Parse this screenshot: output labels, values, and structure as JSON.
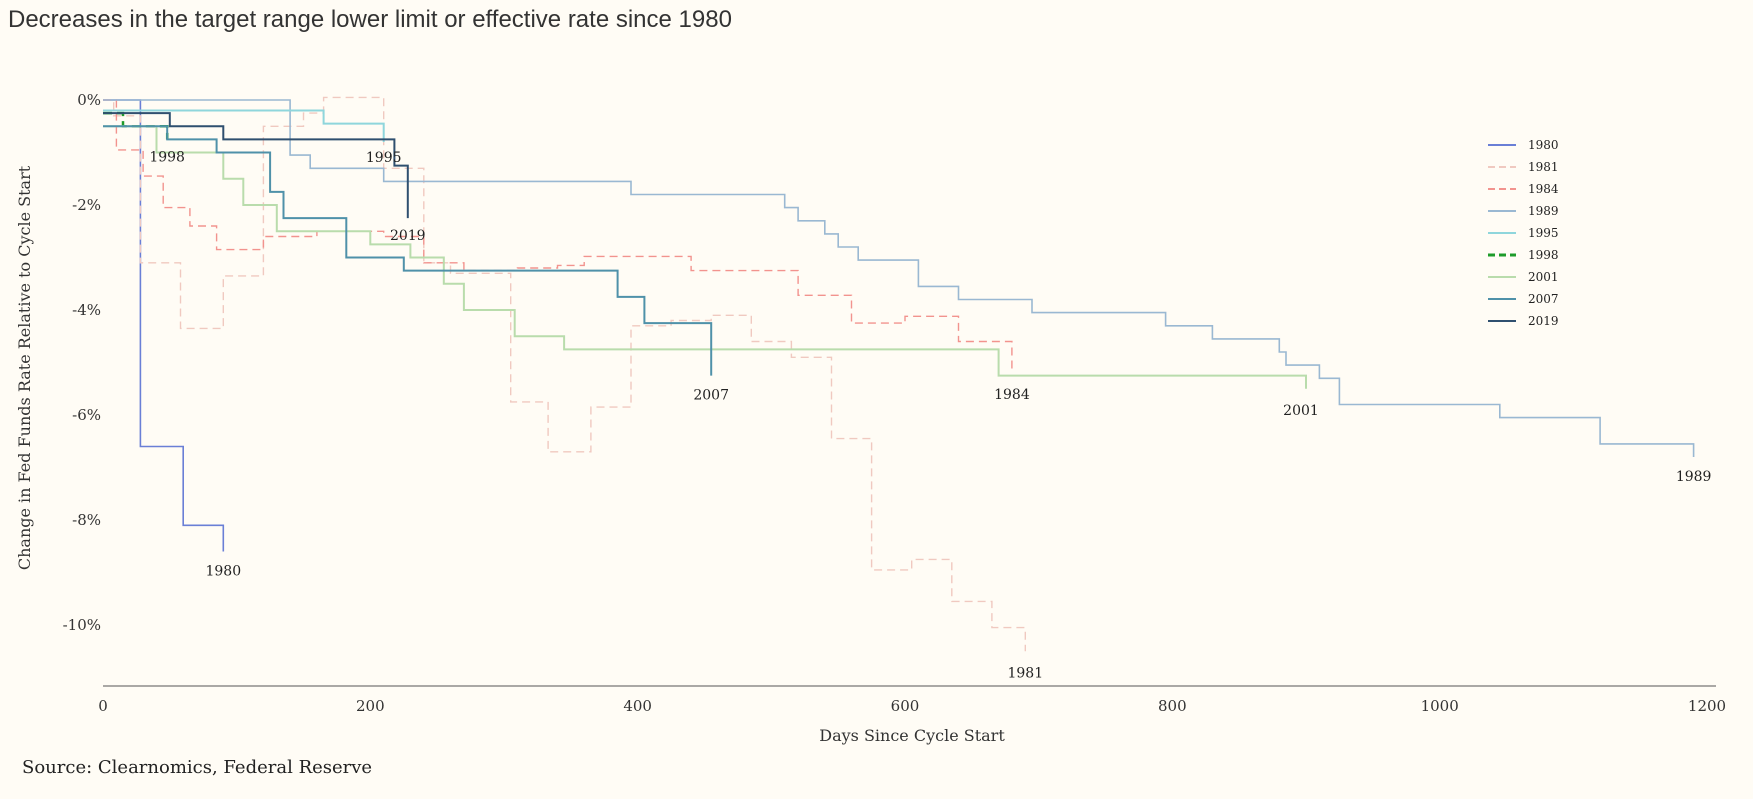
{
  "subtitle": "Decreases in the target range lower limit or effective rate since 1980",
  "source": "Source: Clearnomics, Federal Reserve",
  "chart_data": {
    "type": "line",
    "step": true,
    "xlabel": "Days Since Cycle Start",
    "ylabel": "Change in Fed Funds Rate Relative to Cycle Start",
    "xlim": [
      0,
      1200
    ],
    "ylim": [
      -11,
      0.2
    ],
    "xticks": [
      0,
      200,
      400,
      600,
      800,
      1000,
      1200
    ],
    "xtick_labels": [
      "0",
      "200",
      "400",
      "600",
      "800",
      "1000",
      "1200"
    ],
    "yticks": [
      0,
      -2,
      -4,
      -6,
      -8,
      -10
    ],
    "ytick_labels": [
      "0%",
      "-2%",
      "-4%",
      "-6%",
      "-8%",
      "-10%"
    ],
    "grid": false,
    "legend_position": "right",
    "series": [
      {
        "name": "1980",
        "color": "#6a7fd6",
        "dash": "solid",
        "width": 1.6,
        "end_label": "1980",
        "points": [
          [
            0,
            0
          ],
          [
            28,
            0
          ],
          [
            28,
            -6.6
          ],
          [
            60,
            -6.6
          ],
          [
            60,
            -8.1
          ],
          [
            90,
            -8.1
          ],
          [
            90,
            -8.6
          ]
        ]
      },
      {
        "name": "1981",
        "color": "#f0c9c0",
        "dash": "dashed",
        "width": 1.4,
        "end_label": "1981",
        "points": [
          [
            0,
            0
          ],
          [
            8,
            0
          ],
          [
            8,
            -0.3
          ],
          [
            28,
            -0.3
          ],
          [
            28,
            -3.1
          ],
          [
            58,
            -3.1
          ],
          [
            58,
            -4.35
          ],
          [
            90,
            -4.35
          ],
          [
            90,
            -3.35
          ],
          [
            120,
            -3.35
          ],
          [
            120,
            -0.5
          ],
          [
            150,
            -0.5
          ],
          [
            150,
            -0.25
          ],
          [
            165,
            -0.25
          ],
          [
            165,
            0.05
          ],
          [
            210,
            0.05
          ],
          [
            210,
            -1.3
          ],
          [
            240,
            -1.3
          ],
          [
            240,
            -3.1
          ],
          [
            260,
            -3.1
          ],
          [
            260,
            -3.3
          ],
          [
            305,
            -3.3
          ],
          [
            305,
            -5.75
          ],
          [
            333,
            -5.75
          ],
          [
            333,
            -6.7
          ],
          [
            365,
            -6.7
          ],
          [
            365,
            -5.85
          ],
          [
            395,
            -5.85
          ],
          [
            395,
            -4.3
          ],
          [
            425,
            -4.3
          ],
          [
            425,
            -4.2
          ],
          [
            455,
            -4.2
          ],
          [
            455,
            -4.1
          ],
          [
            485,
            -4.1
          ],
          [
            485,
            -4.6
          ],
          [
            515,
            -4.6
          ],
          [
            515,
            -4.9
          ],
          [
            545,
            -4.9
          ],
          [
            545,
            -6.45
          ],
          [
            575,
            -6.45
          ],
          [
            575,
            -8.95
          ],
          [
            605,
            -8.95
          ],
          [
            605,
            -8.75
          ],
          [
            635,
            -8.75
          ],
          [
            635,
            -9.55
          ],
          [
            665,
            -9.55
          ],
          [
            665,
            -10.05
          ],
          [
            690,
            -10.05
          ],
          [
            690,
            -10.5
          ]
        ]
      },
      {
        "name": "1984",
        "color": "#f2938e",
        "dash": "dashed",
        "width": 1.4,
        "end_label": "1984",
        "points": [
          [
            0,
            0
          ],
          [
            10,
            0
          ],
          [
            10,
            -0.95
          ],
          [
            30,
            -0.95
          ],
          [
            30,
            -1.45
          ],
          [
            45,
            -1.45
          ],
          [
            45,
            -2.05
          ],
          [
            65,
            -2.05
          ],
          [
            65,
            -2.4
          ],
          [
            85,
            -2.4
          ],
          [
            85,
            -2.85
          ],
          [
            120,
            -2.85
          ],
          [
            120,
            -2.6
          ],
          [
            160,
            -2.6
          ],
          [
            160,
            -2.5
          ],
          [
            210,
            -2.5
          ],
          [
            210,
            -2.6
          ],
          [
            240,
            -2.6
          ],
          [
            240,
            -3.1
          ],
          [
            270,
            -3.1
          ],
          [
            270,
            -3.25
          ],
          [
            310,
            -3.25
          ],
          [
            310,
            -3.2
          ],
          [
            340,
            -3.2
          ],
          [
            340,
            -3.15
          ],
          [
            360,
            -3.15
          ],
          [
            360,
            -2.98
          ],
          [
            440,
            -2.98
          ],
          [
            440,
            -3.25
          ],
          [
            520,
            -3.25
          ],
          [
            520,
            -3.72
          ],
          [
            560,
            -3.72
          ],
          [
            560,
            -4.25
          ],
          [
            600,
            -4.25
          ],
          [
            600,
            -4.12
          ],
          [
            640,
            -4.12
          ],
          [
            640,
            -4.6
          ],
          [
            680,
            -4.6
          ],
          [
            680,
            -5.2
          ]
        ]
      },
      {
        "name": "1989",
        "color": "#9ab8d2",
        "dash": "solid",
        "width": 1.6,
        "end_label": "1989",
        "points": [
          [
            0,
            0
          ],
          [
            140,
            0
          ],
          [
            140,
            -1.05
          ],
          [
            155,
            -1.05
          ],
          [
            155,
            -1.3
          ],
          [
            210,
            -1.3
          ],
          [
            210,
            -1.55
          ],
          [
            395,
            -1.55
          ],
          [
            395,
            -1.8
          ],
          [
            510,
            -1.8
          ],
          [
            510,
            -2.05
          ],
          [
            520,
            -2.05
          ],
          [
            520,
            -2.3
          ],
          [
            540,
            -2.3
          ],
          [
            540,
            -2.55
          ],
          [
            550,
            -2.55
          ],
          [
            550,
            -2.8
          ],
          [
            565,
            -2.8
          ],
          [
            565,
            -3.05
          ],
          [
            610,
            -3.05
          ],
          [
            610,
            -3.55
          ],
          [
            640,
            -3.55
          ],
          [
            640,
            -3.8
          ],
          [
            695,
            -3.8
          ],
          [
            695,
            -4.05
          ],
          [
            795,
            -4.05
          ],
          [
            795,
            -4.3
          ],
          [
            830,
            -4.3
          ],
          [
            830,
            -4.55
          ],
          [
            880,
            -4.55
          ],
          [
            880,
            -4.8
          ],
          [
            885,
            -4.8
          ],
          [
            885,
            -5.05
          ],
          [
            910,
            -5.05
          ],
          [
            910,
            -5.3
          ],
          [
            925,
            -5.3
          ],
          [
            925,
            -5.8
          ],
          [
            1045,
            -5.8
          ],
          [
            1045,
            -6.05
          ],
          [
            1120,
            -6.05
          ],
          [
            1120,
            -6.55
          ],
          [
            1190,
            -6.55
          ],
          [
            1190,
            -6.8
          ]
        ]
      },
      {
        "name": "1995",
        "color": "#8fd6dc",
        "dash": "solid",
        "width": 2,
        "end_label": "1995",
        "points": [
          [
            0,
            -0.2
          ],
          [
            165,
            -0.2
          ],
          [
            165,
            -0.45
          ],
          [
            210,
            -0.45
          ],
          [
            210,
            -0.8
          ]
        ]
      },
      {
        "name": "1998",
        "color": "#1e9c2a",
        "dash": "dashed",
        "width": 2.5,
        "end_label": "1998",
        "points": [
          [
            0,
            -0.25
          ],
          [
            15,
            -0.25
          ],
          [
            15,
            -0.5
          ],
          [
            48,
            -0.5
          ],
          [
            48,
            -0.75
          ]
        ]
      },
      {
        "name": "2001",
        "color": "#b9dcac",
        "dash": "solid",
        "width": 2,
        "end_label": "2001",
        "points": [
          [
            0,
            -0.5
          ],
          [
            40,
            -0.5
          ],
          [
            40,
            -1.0
          ],
          [
            90,
            -1.0
          ],
          [
            90,
            -1.5
          ],
          [
            105,
            -1.5
          ],
          [
            105,
            -2.0
          ],
          [
            130,
            -2.0
          ],
          [
            130,
            -2.5
          ],
          [
            200,
            -2.5
          ],
          [
            200,
            -2.75
          ],
          [
            230,
            -2.75
          ],
          [
            230,
            -3.0
          ],
          [
            255,
            -3.0
          ],
          [
            255,
            -3.5
          ],
          [
            270,
            -3.5
          ],
          [
            270,
            -4.0
          ],
          [
            308,
            -4.0
          ],
          [
            308,
            -4.5
          ],
          [
            345,
            -4.5
          ],
          [
            345,
            -4.75
          ],
          [
            670,
            -4.75
          ],
          [
            670,
            -5.25
          ],
          [
            900,
            -5.25
          ],
          [
            900,
            -5.5
          ]
        ]
      },
      {
        "name": "2007",
        "color": "#4f91a9",
        "dash": "solid",
        "width": 2,
        "end_label": "2007",
        "points": [
          [
            0,
            -0.5
          ],
          [
            48,
            -0.5
          ],
          [
            48,
            -0.75
          ],
          [
            85,
            -0.75
          ],
          [
            85,
            -1.0
          ],
          [
            125,
            -1.0
          ],
          [
            125,
            -1.75
          ],
          [
            135,
            -1.75
          ],
          [
            135,
            -2.25
          ],
          [
            182,
            -2.25
          ],
          [
            182,
            -3.0
          ],
          [
            225,
            -3.0
          ],
          [
            225,
            -3.25
          ],
          [
            385,
            -3.25
          ],
          [
            385,
            -3.75
          ],
          [
            405,
            -3.75
          ],
          [
            405,
            -4.25
          ],
          [
            455,
            -4.25
          ],
          [
            455,
            -5.25
          ]
        ]
      },
      {
        "name": "2019",
        "color": "#2f4f6f",
        "dash": "solid",
        "width": 2,
        "end_label": "2019",
        "points": [
          [
            0,
            -0.25
          ],
          [
            50,
            -0.25
          ],
          [
            50,
            -0.5
          ],
          [
            90,
            -0.5
          ],
          [
            90,
            -0.75
          ],
          [
            218,
            -0.75
          ],
          [
            218,
            -1.25
          ],
          [
            228,
            -1.25
          ],
          [
            228,
            -2.25
          ]
        ]
      }
    ]
  }
}
